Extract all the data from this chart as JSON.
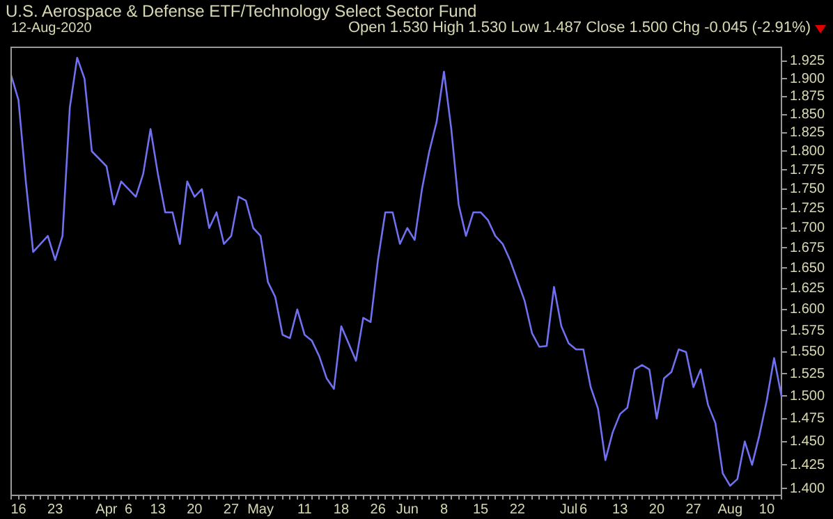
{
  "chart_data": {
    "type": "line",
    "title": "U.S. Aerospace & Defense ETF/Technology Select Sector Fund",
    "subtitle": "12-Aug-2020",
    "annotations": [
      "Open 1.530  High 1.530  Low 1.487  Close 1.500  Chg -0.045 (-2.91%)"
    ],
    "categories": [
      null,
      "16",
      null,
      null,
      null,
      null,
      "23",
      null,
      null,
      null,
      null,
      null,
      null,
      "Apr",
      null,
      null,
      "6",
      null,
      null,
      null,
      "13",
      null,
      null,
      null,
      null,
      "20",
      null,
      null,
      null,
      null,
      "27",
      null,
      null,
      null,
      "May",
      null,
      null,
      null,
      null,
      null,
      "11",
      null,
      null,
      null,
      null,
      "18",
      null,
      null,
      null,
      null,
      "26",
      null,
      null,
      null,
      "Jun",
      null,
      null,
      null,
      null,
      "8",
      null,
      null,
      null,
      null,
      "15",
      null,
      null,
      null,
      null,
      "22",
      null,
      null,
      null,
      null,
      null,
      null,
      "Jul",
      null,
      "6",
      null,
      null,
      null,
      null,
      "13",
      null,
      null,
      null,
      null,
      "20",
      null,
      null,
      null,
      null,
      "27",
      null,
      null,
      null,
      null,
      "Aug",
      null,
      null,
      null,
      null,
      "10",
      null,
      null
    ],
    "series": [
      {
        "color": "#7070f0",
        "values": [
          1.905,
          1.87,
          1.76,
          1.67,
          1.68,
          1.69,
          1.66,
          1.69,
          1.86,
          1.93,
          1.9,
          1.8,
          1.79,
          1.78,
          1.73,
          1.76,
          1.75,
          1.74,
          1.77,
          1.83,
          1.77,
          1.72,
          1.72,
          1.68,
          1.76,
          1.74,
          1.75,
          1.7,
          1.72,
          1.68,
          1.69,
          1.74,
          1.735,
          1.7,
          1.69,
          1.633,
          1.615,
          1.57,
          1.566,
          1.6,
          1.57,
          1.563,
          1.545,
          1.52,
          1.508,
          1.58,
          1.56,
          1.54,
          1.59,
          1.585,
          1.66,
          1.72,
          1.72,
          1.68,
          1.7,
          1.685,
          1.75,
          1.8,
          1.84,
          1.91,
          1.83,
          1.73,
          1.69,
          1.72,
          1.72,
          1.71,
          1.69,
          1.68,
          1.66,
          1.635,
          1.61,
          1.572,
          1.556,
          1.557,
          1.627,
          1.58,
          1.56,
          1.553,
          1.553,
          1.51,
          1.486,
          1.43,
          1.46,
          1.48,
          1.487,
          1.53,
          1.535,
          1.53,
          1.475,
          1.52,
          1.527,
          1.553,
          1.55,
          1.51,
          1.53,
          1.49,
          1.47,
          1.416,
          1.403,
          1.41,
          1.45,
          1.425,
          1.457,
          1.495,
          1.543,
          1.5
        ]
      }
    ],
    "log": true,
    "ylim": [
      1.393,
      1.945
    ],
    "yticks": [
      {
        "value": 1.4,
        "label": "1.400"
      },
      {
        "value": 1.425,
        "label": "1.425"
      },
      {
        "value": 1.45,
        "label": "1.450"
      },
      {
        "value": 1.475,
        "label": "1.475"
      },
      {
        "value": 1.5,
        "label": "1.500"
      },
      {
        "value": 1.525,
        "label": "1.525"
      },
      {
        "value": 1.55,
        "label": "1.550"
      },
      {
        "value": 1.575,
        "label": "1.575"
      },
      {
        "value": 1.6,
        "label": "1.600"
      },
      {
        "value": 1.625,
        "label": "1.625"
      },
      {
        "value": 1.65,
        "label": "1.650"
      },
      {
        "value": 1.675,
        "label": "1.675"
      },
      {
        "value": 1.7,
        "label": "1.700"
      },
      {
        "value": 1.725,
        "label": "1.725"
      },
      {
        "value": 1.75,
        "label": "1.750"
      },
      {
        "value": 1.775,
        "label": "1.775"
      },
      {
        "value": 1.8,
        "label": "1.800"
      },
      {
        "value": 1.825,
        "label": "1.825"
      },
      {
        "value": 1.85,
        "label": "1.850"
      },
      {
        "value": 1.875,
        "label": "1.875"
      },
      {
        "value": 1.9,
        "label": "1.900"
      },
      {
        "value": 1.925,
        "label": "1.925"
      }
    ],
    "grid": false,
    "marker": "none",
    "line_style": "solid"
  }
}
